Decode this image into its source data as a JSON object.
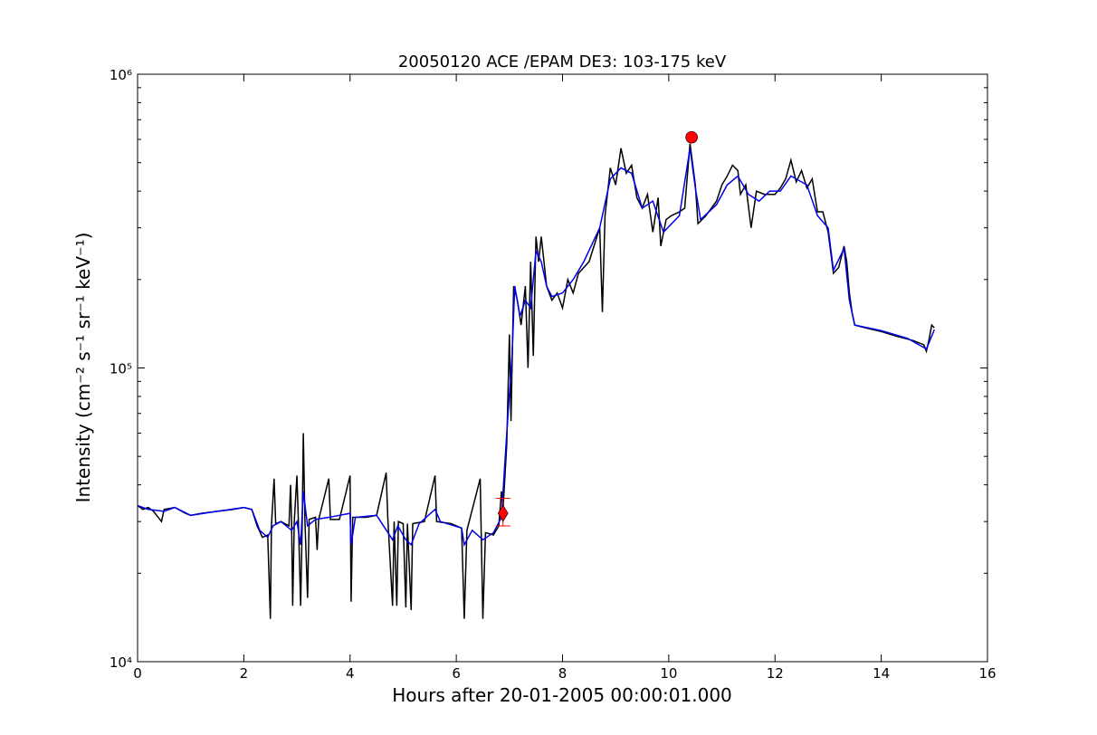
{
  "chart_data": {
    "type": "line",
    "title": "20050120 ACE /EPAM DE3: 103-175 keV",
    "xlabel": "Hours after 20-01-2005 00:00:01.000",
    "ylabel": "Intensity (cm⁻² s⁻¹ sr⁻¹ keV⁻¹)",
    "xlim": [
      0,
      16
    ],
    "xticks": [
      0,
      2,
      4,
      6,
      8,
      10,
      12,
      14,
      16
    ],
    "ylim": [
      10000,
      1000000
    ],
    "ylog": true,
    "yticks": [
      {
        "value": 10000,
        "label": "10⁴"
      },
      {
        "value": 100000,
        "label": "10⁵"
      },
      {
        "value": 1000000,
        "label": "10⁶"
      }
    ],
    "yminorticks": [
      20000,
      30000,
      40000,
      50000,
      60000,
      70000,
      80000,
      90000,
      200000,
      300000,
      400000,
      500000,
      600000,
      700000,
      800000,
      900000
    ],
    "series": [
      {
        "color": "#000000",
        "x": [
          0,
          0.1,
          0.2,
          0.3,
          0.45,
          0.5,
          0.7,
          0.9,
          1.0,
          1.2,
          1.5,
          1.8,
          2.0,
          2.15,
          2.25,
          2.35,
          2.45,
          2.5,
          2.52,
          2.57,
          2.6,
          2.7,
          2.85,
          2.88,
          2.9,
          2.92,
          2.95,
          3.0,
          3.03,
          3.07,
          3.1,
          3.12,
          3.15,
          3.2,
          3.23,
          3.35,
          3.38,
          3.41,
          3.6,
          3.63,
          3.8,
          4.0,
          4.02,
          4.05,
          4.3,
          4.5,
          4.68,
          4.71,
          4.8,
          4.83,
          4.88,
          4.91,
          5.0,
          5.05,
          5.08,
          5.15,
          5.18,
          5.4,
          5.6,
          5.63,
          5.9,
          6.1,
          6.15,
          6.2,
          6.45,
          6.5,
          6.55,
          6.7,
          6.8,
          6.85,
          6.88,
          6.95,
          7.0,
          7.03,
          7.08,
          7.15,
          7.22,
          7.3,
          7.35,
          7.4,
          7.45,
          7.5,
          7.55,
          7.6,
          7.7,
          7.8,
          7.9,
          8.0,
          8.1,
          8.2,
          8.3,
          8.5,
          8.7,
          8.75,
          8.8,
          8.9,
          9.0,
          9.1,
          9.2,
          9.3,
          9.4,
          9.5,
          9.6,
          9.7,
          9.8,
          9.85,
          9.95,
          10.05,
          10.2,
          10.3,
          10.4,
          10.5,
          10.55,
          10.7,
          10.9,
          11.0,
          11.1,
          11.2,
          11.3,
          11.35,
          11.45,
          11.55,
          11.65,
          11.8,
          12.0,
          12.1,
          12.2,
          12.3,
          12.4,
          12.5,
          12.6,
          12.7,
          12.8,
          12.9,
          13.0,
          13.1,
          13.2,
          13.3,
          13.35,
          13.4,
          13.45,
          13.5,
          13.7,
          14.0,
          14.3,
          14.6,
          14.8,
          14.85,
          14.9,
          14.95,
          15.0
        ],
        "values": [
          34000,
          33000,
          33500,
          32500,
          30000,
          33000,
          33500,
          32000,
          31500,
          32000,
          32500,
          33000,
          33500,
          33000,
          29000,
          26500,
          27000,
          14000,
          29000,
          42000,
          29500,
          30000,
          29000,
          40000,
          29500,
          15500,
          30000,
          43000,
          29000,
          15500,
          30000,
          60000,
          30500,
          16500,
          30500,
          31000,
          24000,
          30500,
          42000,
          30500,
          30500,
          43000,
          16000,
          31000,
          31000,
          31500,
          44000,
          31000,
          15500,
          30000,
          15500,
          30000,
          29500,
          15300,
          29500,
          15000,
          29500,
          30000,
          43000,
          30000,
          29500,
          28500,
          14000,
          28000,
          42000,
          14000,
          27500,
          27000,
          29000,
          38000,
          33000,
          55000,
          130000,
          66000,
          190000,
          170000,
          140000,
          190000,
          100000,
          230000,
          110000,
          280000,
          230000,
          280000,
          190000,
          170000,
          180000,
          160000,
          200000,
          180000,
          210000,
          230000,
          300000,
          155000,
          330000,
          480000,
          420000,
          560000,
          460000,
          490000,
          380000,
          350000,
          390000,
          290000,
          380000,
          260000,
          320000,
          330000,
          340000,
          350000,
          580000,
          420000,
          310000,
          330000,
          370000,
          420000,
          450000,
          490000,
          470000,
          390000,
          420000,
          300000,
          400000,
          390000,
          390000,
          410000,
          440000,
          510000,
          430000,
          470000,
          410000,
          440000,
          340000,
          340000,
          290000,
          210000,
          220000,
          260000,
          230000,
          180000,
          155000,
          140000,
          137000,
          133000,
          128000,
          124000,
          120000,
          114000,
          125000,
          140000,
          137000
        ]
      },
      {
        "color": "#0000ee",
        "x": [
          0,
          0.2,
          0.5,
          0.7,
          1.0,
          1.5,
          2.0,
          2.15,
          2.3,
          2.45,
          2.55,
          2.7,
          2.9,
          3.0,
          3.07,
          3.12,
          3.2,
          3.35,
          3.6,
          4.0,
          4.02,
          4.1,
          4.5,
          4.8,
          4.9,
          5.05,
          5.15,
          5.3,
          5.6,
          5.7,
          6.1,
          6.15,
          6.3,
          6.5,
          6.7,
          6.85,
          6.95,
          7.05,
          7.1,
          7.2,
          7.3,
          7.4,
          7.5,
          7.6,
          7.7,
          7.8,
          8.0,
          8.2,
          8.4,
          8.7,
          8.9,
          9.1,
          9.3,
          9.5,
          9.7,
          9.9,
          10.2,
          10.4,
          10.5,
          10.6,
          10.9,
          11.1,
          11.3,
          11.5,
          11.7,
          11.9,
          12.1,
          12.3,
          12.6,
          12.8,
          13.0,
          13.1,
          13.3,
          13.4,
          13.5,
          14.0,
          14.5,
          14.85,
          15.0
        ],
        "values": [
          34000,
          33000,
          32500,
          33500,
          31500,
          32500,
          33500,
          33000,
          28000,
          26500,
          29000,
          30000,
          28000,
          30000,
          25000,
          38000,
          29000,
          30500,
          31000,
          32000,
          25000,
          31000,
          31500,
          26000,
          29000,
          26000,
          25000,
          29500,
          33000,
          30000,
          28500,
          25000,
          28000,
          26000,
          27500,
          31000,
          60000,
          110000,
          190000,
          150000,
          170000,
          160000,
          250000,
          230000,
          190000,
          175000,
          180000,
          200000,
          230000,
          300000,
          440000,
          480000,
          460000,
          350000,
          370000,
          290000,
          330000,
          560000,
          410000,
          320000,
          360000,
          420000,
          450000,
          390000,
          370000,
          400000,
          400000,
          450000,
          420000,
          330000,
          300000,
          215000,
          255000,
          170000,
          140000,
          134000,
          126000,
          116000,
          135000
        ]
      }
    ],
    "peak": {
      "x": 10.43,
      "value": 610000,
      "color": "#ff0000"
    },
    "onset": {
      "x": 6.88,
      "value": 32000,
      "upper": 36000,
      "lower": 29000,
      "color": "#ff0000"
    }
  }
}
